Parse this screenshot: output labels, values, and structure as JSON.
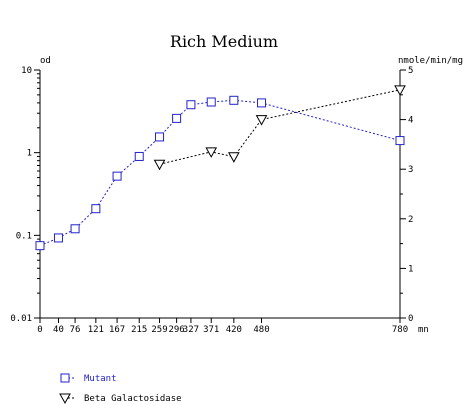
{
  "chart_data": {
    "type": "line",
    "title": "Rich Medium",
    "y_left_label": "od",
    "y_right_label": "nmole/min/mg",
    "x_unit": "mn",
    "x_ticks": [
      0,
      40,
      76,
      121,
      167,
      215,
      259,
      296,
      327,
      371,
      420,
      480,
      780
    ],
    "x_tick_labels": [
      "0",
      "40",
      "76",
      "121",
      "167",
      "215",
      "259",
      "296",
      "327",
      "371",
      "420",
      "480",
      "780"
    ],
    "xlim": [
      0,
      780
    ],
    "y_left_scale": "log",
    "y_left_ticks": [
      0.01,
      0.1,
      1,
      10
    ],
    "y_left_tick_labels": [
      "0.01",
      "0.1",
      "1",
      "10"
    ],
    "ylim_left": [
      0.01,
      10
    ],
    "y_right_ticks": [
      0,
      1,
      2,
      3,
      4,
      5
    ],
    "y_right_tick_labels": [
      "0",
      "1",
      "2",
      "3",
      "4",
      "5"
    ],
    "ylim_right": [
      0,
      5
    ],
    "grid": false,
    "legend_position": "bottom-left",
    "series": [
      {
        "name": "Mutant",
        "axis": "left",
        "marker": "square",
        "color": "#2222cc",
        "x": [
          0,
          40,
          76,
          121,
          167,
          215,
          259,
          296,
          327,
          371,
          420,
          480,
          780
        ],
        "y": [
          0.075,
          0.093,
          0.12,
          0.21,
          0.52,
          0.9,
          1.55,
          2.6,
          3.8,
          4.1,
          4.3,
          4.0,
          1.4
        ]
      },
      {
        "name": "Beta Galactosidase",
        "axis": "right",
        "marker": "triangle-down",
        "color": "#000000",
        "x": [
          259,
          371,
          420,
          480,
          780
        ],
        "y": [
          3.1,
          3.35,
          3.25,
          4.0,
          4.6
        ]
      }
    ]
  }
}
